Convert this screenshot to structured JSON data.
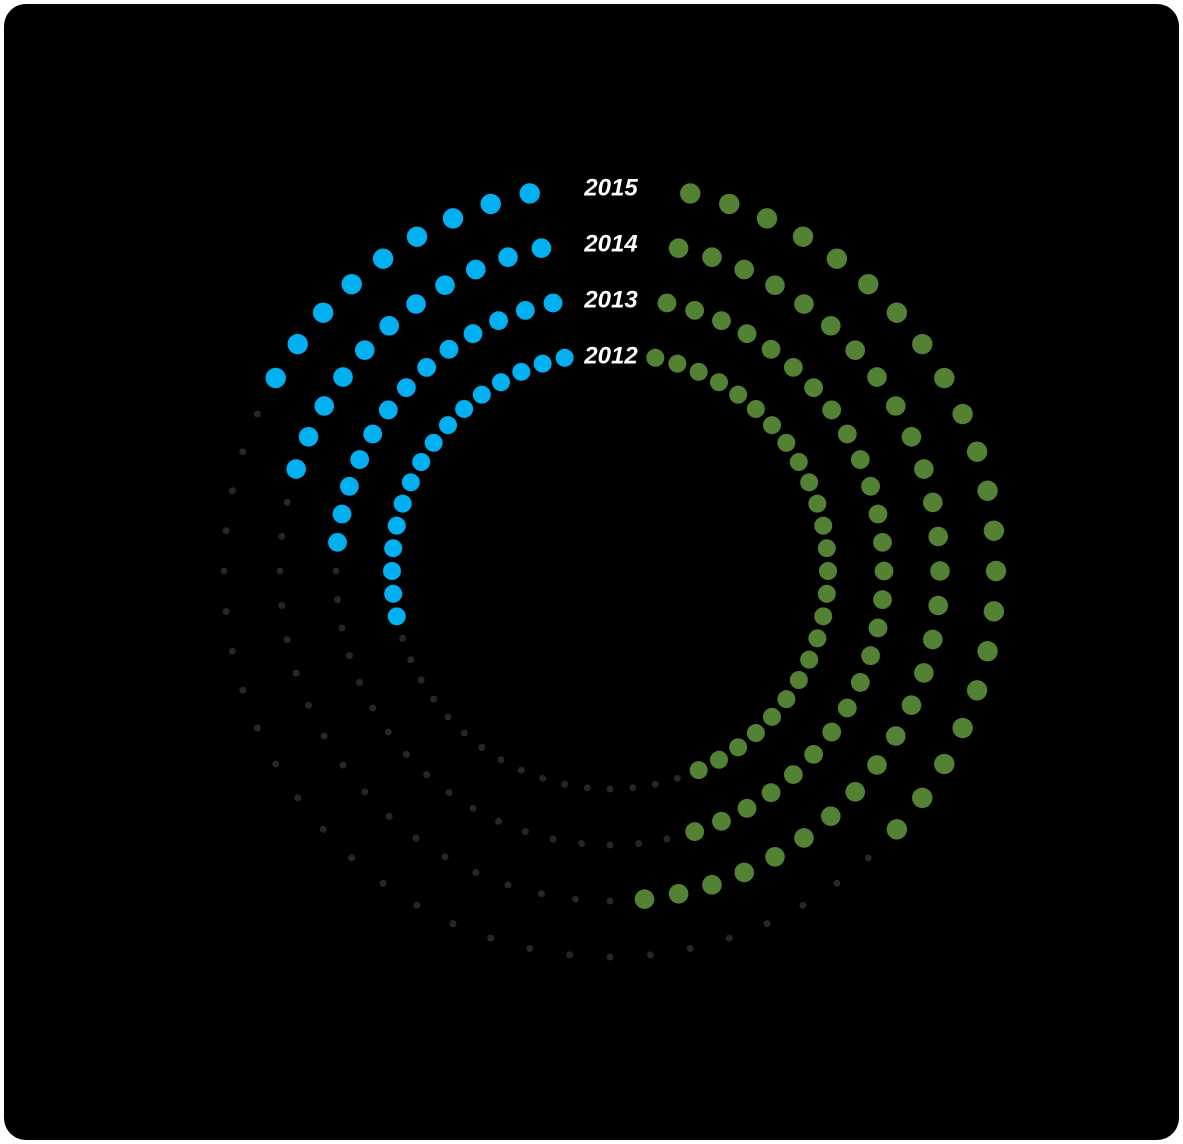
{
  "chart_data": {
    "type": "radial-dots",
    "categories": [
      "2012",
      "2013",
      "2014",
      "2015"
    ],
    "series": [
      {
        "color": "#00b0f0",
        "values": [
          16,
          13,
          11,
          9
        ]
      },
      {
        "color": "#548235",
        "values": [
          25,
          26,
          28,
          21
        ]
      }
    ],
    "slots": 60,
    "remainder_color": "#262626",
    "background": "#000000"
  }
}
